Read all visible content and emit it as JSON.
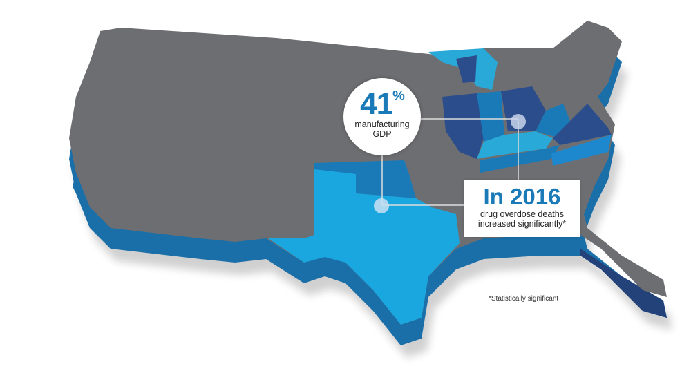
{
  "callout_gdp": {
    "value": "41",
    "unit": "%",
    "label_line1": "manufacturing",
    "label_line2": "GDP"
  },
  "callout_overdose": {
    "year": "In 2016",
    "line1": "drug overdose deaths",
    "line2": "increased significantly*"
  },
  "footnote": "*Statistically significant",
  "colors": {
    "land": "#6d6e71",
    "light_blue": "#1aa7e0",
    "mid_blue": "#1a7ab8",
    "dark_blue": "#2b4d8c",
    "sky": "#29a9d8",
    "accent_text": "#1a7ab8"
  }
}
